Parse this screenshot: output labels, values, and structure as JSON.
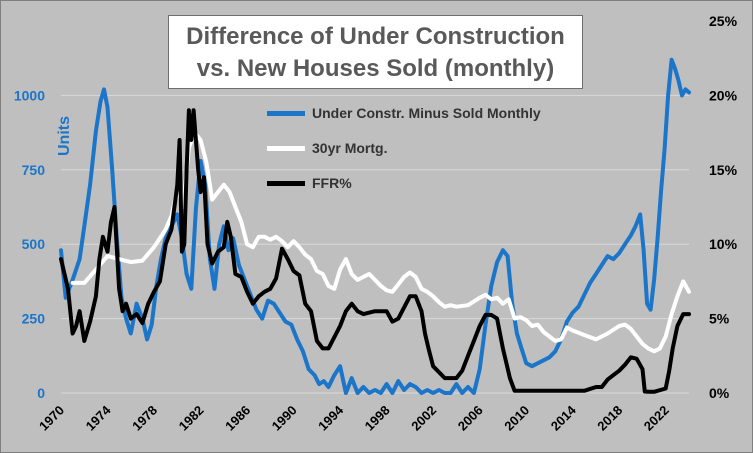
{
  "chart_data": {
    "type": "line",
    "title_line1": "Difference of Under Construction",
    "title_line2": "vs. New Houses Sold (monthly)",
    "ylabel": "Units",
    "y_left": {
      "min": 0,
      "max": 1250,
      "ticks": [
        "0",
        "250",
        "500",
        "750",
        "1000"
      ]
    },
    "y_right": {
      "min": 0,
      "max": 25,
      "ticks": [
        "0%",
        "5%",
        "10%",
        "15%",
        "20%",
        "25%"
      ]
    },
    "x_range": [
      1970,
      2024
    ],
    "x_ticks": [
      "1970",
      "1974",
      "1978",
      "1982",
      "1986",
      "1990",
      "1994",
      "1998",
      "2002",
      "2006",
      "2010",
      "2014",
      "2018",
      "2022"
    ],
    "legend": [
      {
        "label": "Under Constr. Minus Sold Monthly",
        "color": "#1b75c9"
      },
      {
        "label": "30yr Mortg.",
        "color": "#ffffff"
      },
      {
        "label": "FFR%",
        "color": "#000000"
      }
    ],
    "series": [
      {
        "name": "Under Constr. Minus Sold Monthly",
        "axis": "left",
        "color": "#1b75c9",
        "x": [
          1970,
          1970.4,
          1971,
          1971.6,
          1972,
          1972.5,
          1973,
          1973.4,
          1973.7,
          1974,
          1974.4,
          1974.8,
          1975.2,
          1975.6,
          1976,
          1976.5,
          1977,
          1977.4,
          1977.8,
          1978.2,
          1978.6,
          1979,
          1979.5,
          1980,
          1980.4,
          1980.8,
          1981.2,
          1981.6,
          1982,
          1982.4,
          1982.8,
          1983.2,
          1983.6,
          1984,
          1984.4,
          1984.8,
          1985.3,
          1985.8,
          1986.3,
          1986.8,
          1987.3,
          1987.8,
          1988.3,
          1988.8,
          1989.3,
          1989.8,
          1990.3,
          1990.8,
          1991.3,
          1991.8,
          1992.2,
          1992.6,
          1993,
          1993.5,
          1994,
          1994.5,
          1995,
          1995.5,
          1996,
          1996.5,
          1997,
          1997.5,
          1998,
          1998.5,
          1999,
          1999.5,
          2000,
          2000.5,
          2001,
          2001.5,
          2002,
          2002.5,
          2003,
          2003.5,
          2004,
          2004.5,
          2005,
          2005.5,
          2006,
          2006.5,
          2007,
          2007.5,
          2008,
          2008.4,
          2008.8,
          2009.2,
          2009.6,
          2010,
          2010.5,
          2011,
          2011.5,
          2012,
          2012.5,
          2013,
          2013.5,
          2014,
          2014.5,
          2015,
          2015.5,
          2016,
          2016.5,
          2017,
          2017.5,
          2018,
          2018.5,
          2019,
          2019.4,
          2019.8,
          2020.1,
          2020.4,
          2020.7,
          2021,
          2021.3,
          2021.6,
          2021.9,
          2022.2,
          2022.5,
          2022.8,
          2023.1,
          2023.4,
          2023.7,
          2024
        ],
        "values": [
          480,
          320,
          380,
          450,
          560,
          700,
          880,
          980,
          1020,
          960,
          750,
          520,
          320,
          250,
          200,
          300,
          250,
          180,
          230,
          360,
          450,
          520,
          560,
          600,
          520,
          400,
          350,
          620,
          780,
          700,
          450,
          350,
          500,
          560,
          480,
          520,
          430,
          380,
          330,
          280,
          250,
          310,
          300,
          270,
          240,
          230,
          180,
          140,
          80,
          60,
          30,
          40,
          20,
          60,
          90,
          0,
          50,
          0,
          20,
          0,
          10,
          0,
          30,
          0,
          40,
          10,
          30,
          20,
          0,
          10,
          0,
          10,
          0,
          0,
          30,
          0,
          20,
          0,
          80,
          230,
          360,
          440,
          480,
          460,
          300,
          200,
          150,
          100,
          90,
          100,
          110,
          120,
          140,
          180,
          240,
          270,
          290,
          330,
          370,
          400,
          430,
          460,
          450,
          470,
          500,
          530,
          560,
          600,
          480,
          300,
          280,
          380,
          520,
          680,
          820,
          1000,
          1120,
          1090,
          1050,
          1000,
          1020,
          1010
        ]
      },
      {
        "name": "30yr Mortg.",
        "axis": "right",
        "color": "#ffffff",
        "x": [
          1971,
          1972,
          1973,
          1974,
          1975,
          1976,
          1977,
          1978,
          1979,
          1979.5,
          1980,
          1980.5,
          1981,
          1981.5,
          1982,
          1982.5,
          1983,
          1983.5,
          1984,
          1984.5,
          1985,
          1985.5,
          1986,
          1986.5,
          1987,
          1987.5,
          1988,
          1988.5,
          1989,
          1989.5,
          1990,
          1990.5,
          1991,
          1991.5,
          1992,
          1992.5,
          1993,
          1993.5,
          1994,
          1994.5,
          1995,
          1995.5,
          1996,
          1996.5,
          1997,
          1997.5,
          1998,
          1998.5,
          1999,
          1999.5,
          2000,
          2000.5,
          2001,
          2001.5,
          2002,
          2002.5,
          2003,
          2003.5,
          2004,
          2005,
          2006,
          2006.5,
          2007,
          2007.5,
          2008,
          2008.5,
          2009,
          2009.5,
          2010,
          2010.5,
          2011,
          2011.5,
          2012,
          2012.5,
          2013,
          2013.5,
          2014,
          2015,
          2016,
          2017,
          2018,
          2018.5,
          2019,
          2019.5,
          2020,
          2020.5,
          2021,
          2021.5,
          2022,
          2022.5,
          2023,
          2023.5,
          2024
        ],
        "values": [
          7.4,
          7.4,
          8.3,
          9.2,
          9.0,
          8.8,
          8.9,
          9.8,
          11.0,
          11.9,
          13.7,
          12.5,
          16.5,
          17.5,
          17.0,
          15.5,
          13.0,
          13.5,
          14.0,
          13.5,
          12.5,
          11.5,
          10.0,
          9.8,
          10.5,
          10.5,
          10.3,
          10.5,
          10.2,
          9.8,
          10.2,
          9.8,
          9.3,
          9.0,
          8.2,
          8.0,
          7.2,
          7.0,
          8.3,
          9.0,
          8.0,
          7.6,
          7.8,
          8.0,
          7.6,
          7.2,
          6.9,
          6.8,
          7.3,
          7.8,
          8.1,
          7.8,
          7.0,
          6.8,
          6.5,
          6.1,
          5.8,
          5.9,
          5.8,
          5.9,
          6.4,
          6.6,
          6.3,
          6.4,
          6.0,
          6.3,
          5.0,
          5.1,
          4.9,
          4.5,
          4.6,
          4.1,
          3.8,
          3.5,
          3.6,
          4.4,
          4.2,
          3.9,
          3.6,
          4.0,
          4.5,
          4.6,
          4.3,
          3.8,
          3.3,
          3.0,
          2.8,
          3.0,
          3.8,
          5.3,
          6.5,
          7.5,
          6.8
        ]
      },
      {
        "name": "FFR%",
        "axis": "right",
        "color": "#000000",
        "x": [
          1970,
          1970.3,
          1970.6,
          1971,
          1971.3,
          1971.6,
          1972,
          1972.5,
          1973,
          1973.3,
          1973.6,
          1974,
          1974.3,
          1974.6,
          1975,
          1975.3,
          1975.6,
          1976,
          1976.5,
          1977,
          1977.5,
          1978,
          1978.5,
          1979,
          1979.5,
          1980,
          1980.2,
          1980.4,
          1980.6,
          1980.8,
          1981,
          1981.2,
          1981.4,
          1981.6,
          1981.8,
          1982,
          1982.3,
          1982.6,
          1983,
          1983.5,
          1984,
          1984.3,
          1984.6,
          1985,
          1985.5,
          1986,
          1986.5,
          1987,
          1987.5,
          1988,
          1988.5,
          1989,
          1989.5,
          1990,
          1990.5,
          1991,
          1991.5,
          1992,
          1992.5,
          1993,
          1994,
          1994.5,
          1995,
          1995.5,
          1996,
          1997,
          1998,
          1998.5,
          1999,
          2000,
          2000.5,
          2001,
          2001.3,
          2001.6,
          2002,
          2003,
          2003.5,
          2004,
          2004.5,
          2005,
          2005.5,
          2006,
          2006.5,
          2007,
          2007.5,
          2008,
          2008.3,
          2008.6,
          2009,
          2012,
          2015,
          2016,
          2016.5,
          2017,
          2017.5,
          2018,
          2018.5,
          2019,
          2019.5,
          2020,
          2020.2,
          2020.5,
          2021,
          2022,
          2022.3,
          2022.6,
          2023,
          2023.5,
          2024
        ],
        "values": [
          9.0,
          8.0,
          7.0,
          4.0,
          4.5,
          5.5,
          3.5,
          4.8,
          6.5,
          9.0,
          10.5,
          9.5,
          11.5,
          12.5,
          7.0,
          5.5,
          6.0,
          5.0,
          5.3,
          4.7,
          6.0,
          6.8,
          7.5,
          10.0,
          11.0,
          14.0,
          17.0,
          9.5,
          10.0,
          15.0,
          19.0,
          17.0,
          19.0,
          17.0,
          15.0,
          13.5,
          14.5,
          10.0,
          8.7,
          9.5,
          9.8,
          11.5,
          10.5,
          8.0,
          7.8,
          6.8,
          6.0,
          6.5,
          6.8,
          7.0,
          7.7,
          9.7,
          9.0,
          8.2,
          7.9,
          6.0,
          5.5,
          3.5,
          3.0,
          3.0,
          4.5,
          5.5,
          6.0,
          5.5,
          5.3,
          5.5,
          5.5,
          4.8,
          5.0,
          6.5,
          6.5,
          5.5,
          4.0,
          3.0,
          1.8,
          1.0,
          1.0,
          1.0,
          1.5,
          2.5,
          3.5,
          4.5,
          5.25,
          5.25,
          5.0,
          3.0,
          2.0,
          1.0,
          0.15,
          0.15,
          0.15,
          0.4,
          0.4,
          0.9,
          1.2,
          1.5,
          1.9,
          2.4,
          2.3,
          1.6,
          0.1,
          0.08,
          0.08,
          0.3,
          1.5,
          3.0,
          4.5,
          5.3,
          5.3
        ]
      }
    ]
  }
}
